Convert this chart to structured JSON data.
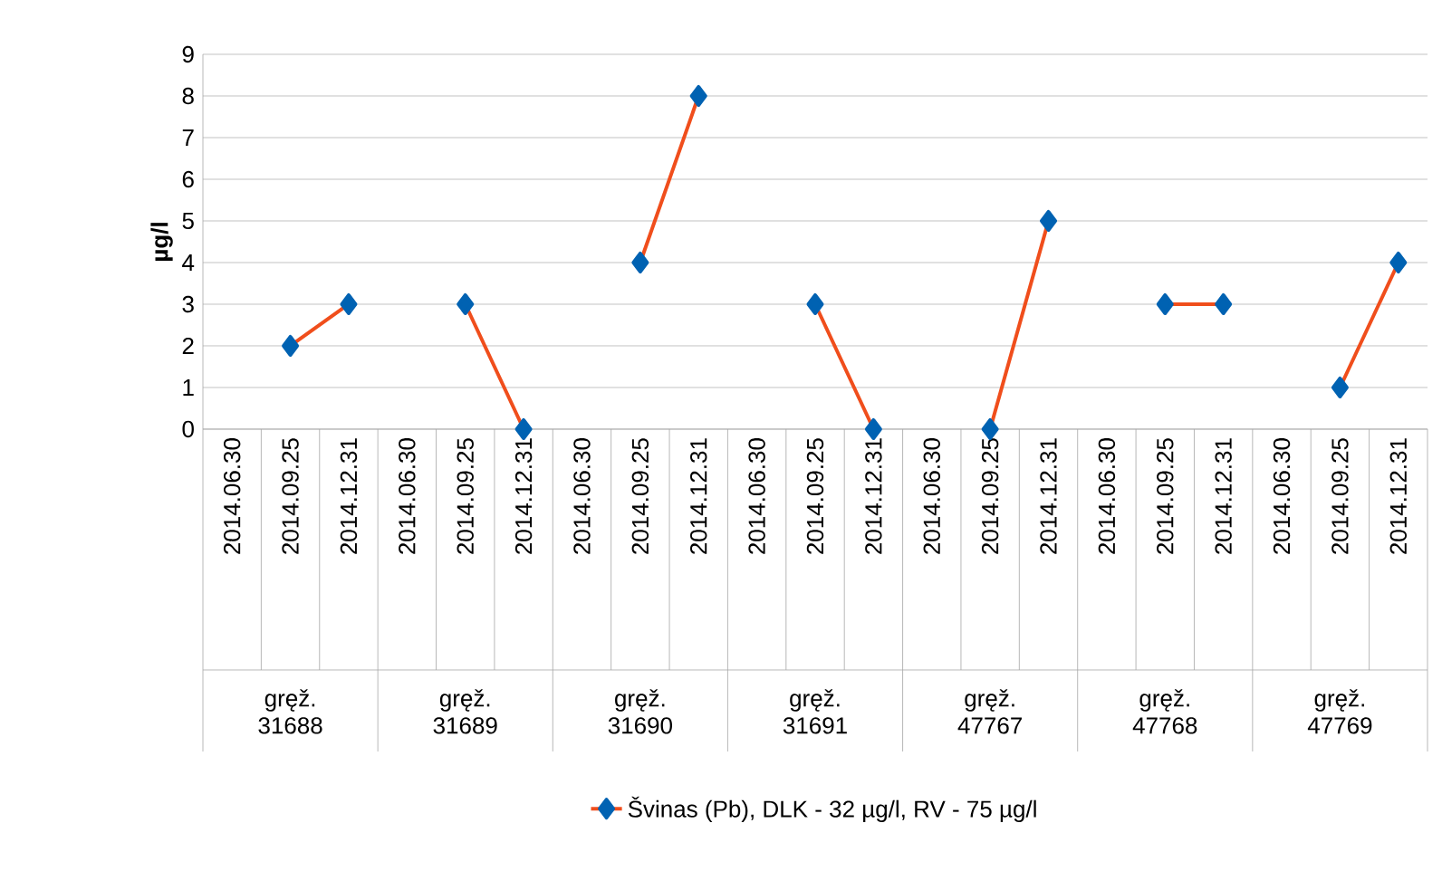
{
  "chart_data": {
    "type": "line",
    "ylabel": "µg/l",
    "categories": [
      "2014.06.30",
      "2014.09.25",
      "2014.12.31",
      "2014.06.30",
      "2014.09.25",
      "2014.12.31",
      "2014.06.30",
      "2014.09.25",
      "2014.12.31",
      "2014.06.30",
      "2014.09.25",
      "2014.12.31",
      "2014.06.30",
      "2014.09.25",
      "2014.12.31",
      "2014.06.30",
      "2014.09.25",
      "2014.12.31",
      "2014.06.30",
      "2014.09.25",
      "2014.12.31"
    ],
    "series": [
      {
        "name": "Švinas (Pb), DLK - 32 µg/l, RV - 75 µg/l",
        "color": "#f04e1c",
        "values": [
          null,
          2,
          3,
          null,
          3,
          0,
          null,
          4,
          8,
          null,
          3,
          0,
          null,
          0,
          5,
          null,
          3,
          3,
          null,
          1,
          4
        ]
      }
    ],
    "annotations": [
      "gręž. 31688",
      "gręž. 31689",
      "gręž. 31690",
      "gręž. 31691",
      "gręž. 47767",
      "gręž. 47768",
      "gręž. 47769"
    ],
    "ylim": [
      0,
      9
    ],
    "yticks": [
      0,
      1,
      2,
      3,
      4,
      5,
      6,
      7,
      8,
      9
    ],
    "grid": "y",
    "legend": "bottom",
    "marker": "diamond",
    "line_style": "solid"
  }
}
